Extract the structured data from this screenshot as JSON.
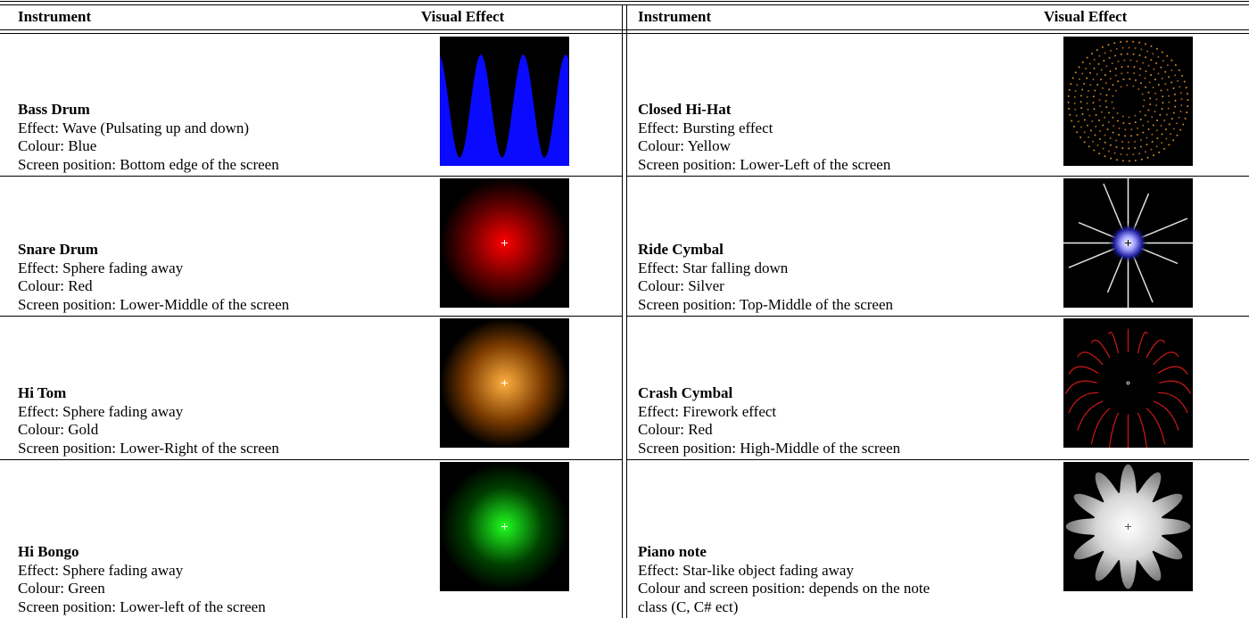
{
  "tables": [
    {
      "headers": [
        "Instrument",
        "Visual Effect"
      ],
      "rows": [
        {
          "name": "Bass Drum",
          "lines": [
            "Effect: Wave (Pulsating up and down)",
            "Colour: Blue",
            "Screen position: Bottom edge of the screen"
          ]
        },
        {
          "name": "Snare Drum",
          "lines": [
            "Effect: Sphere fading away",
            "Colour: Red",
            "Screen position: Lower-Middle of the screen"
          ]
        },
        {
          "name": "Hi Tom",
          "lines": [
            "Effect: Sphere fading away",
            "Colour: Gold",
            "Screen position: Lower-Right of the screen"
          ]
        },
        {
          "name": "Hi Bongo",
          "lines": [
            "Effect: Sphere fading away",
            "Colour: Green",
            "Screen position: Lower-left of the screen"
          ]
        }
      ]
    },
    {
      "headers": [
        "Instrument",
        "Visual Effect"
      ],
      "rows": [
        {
          "name": "Closed Hi-Hat",
          "lines": [
            "Effect: Bursting effect",
            "Colour: Yellow",
            "Screen position: Lower-Left of the screen"
          ]
        },
        {
          "name": "Ride Cymbal",
          "lines": [
            "Effect: Star falling down",
            "Colour: Silver",
            "Screen position: Top-Middle of the screen"
          ]
        },
        {
          "name": "Crash Cymbal",
          "lines": [
            "Effect: Firework effect",
            "Colour: Red",
            "Screen position: High-Middle of the screen"
          ]
        },
        {
          "name": "Piano note",
          "lines": [
            "Effect: Star-like object fading away",
            "Colour and screen position: depends on the note",
            "class (C, C# ect)"
          ]
        }
      ]
    }
  ]
}
